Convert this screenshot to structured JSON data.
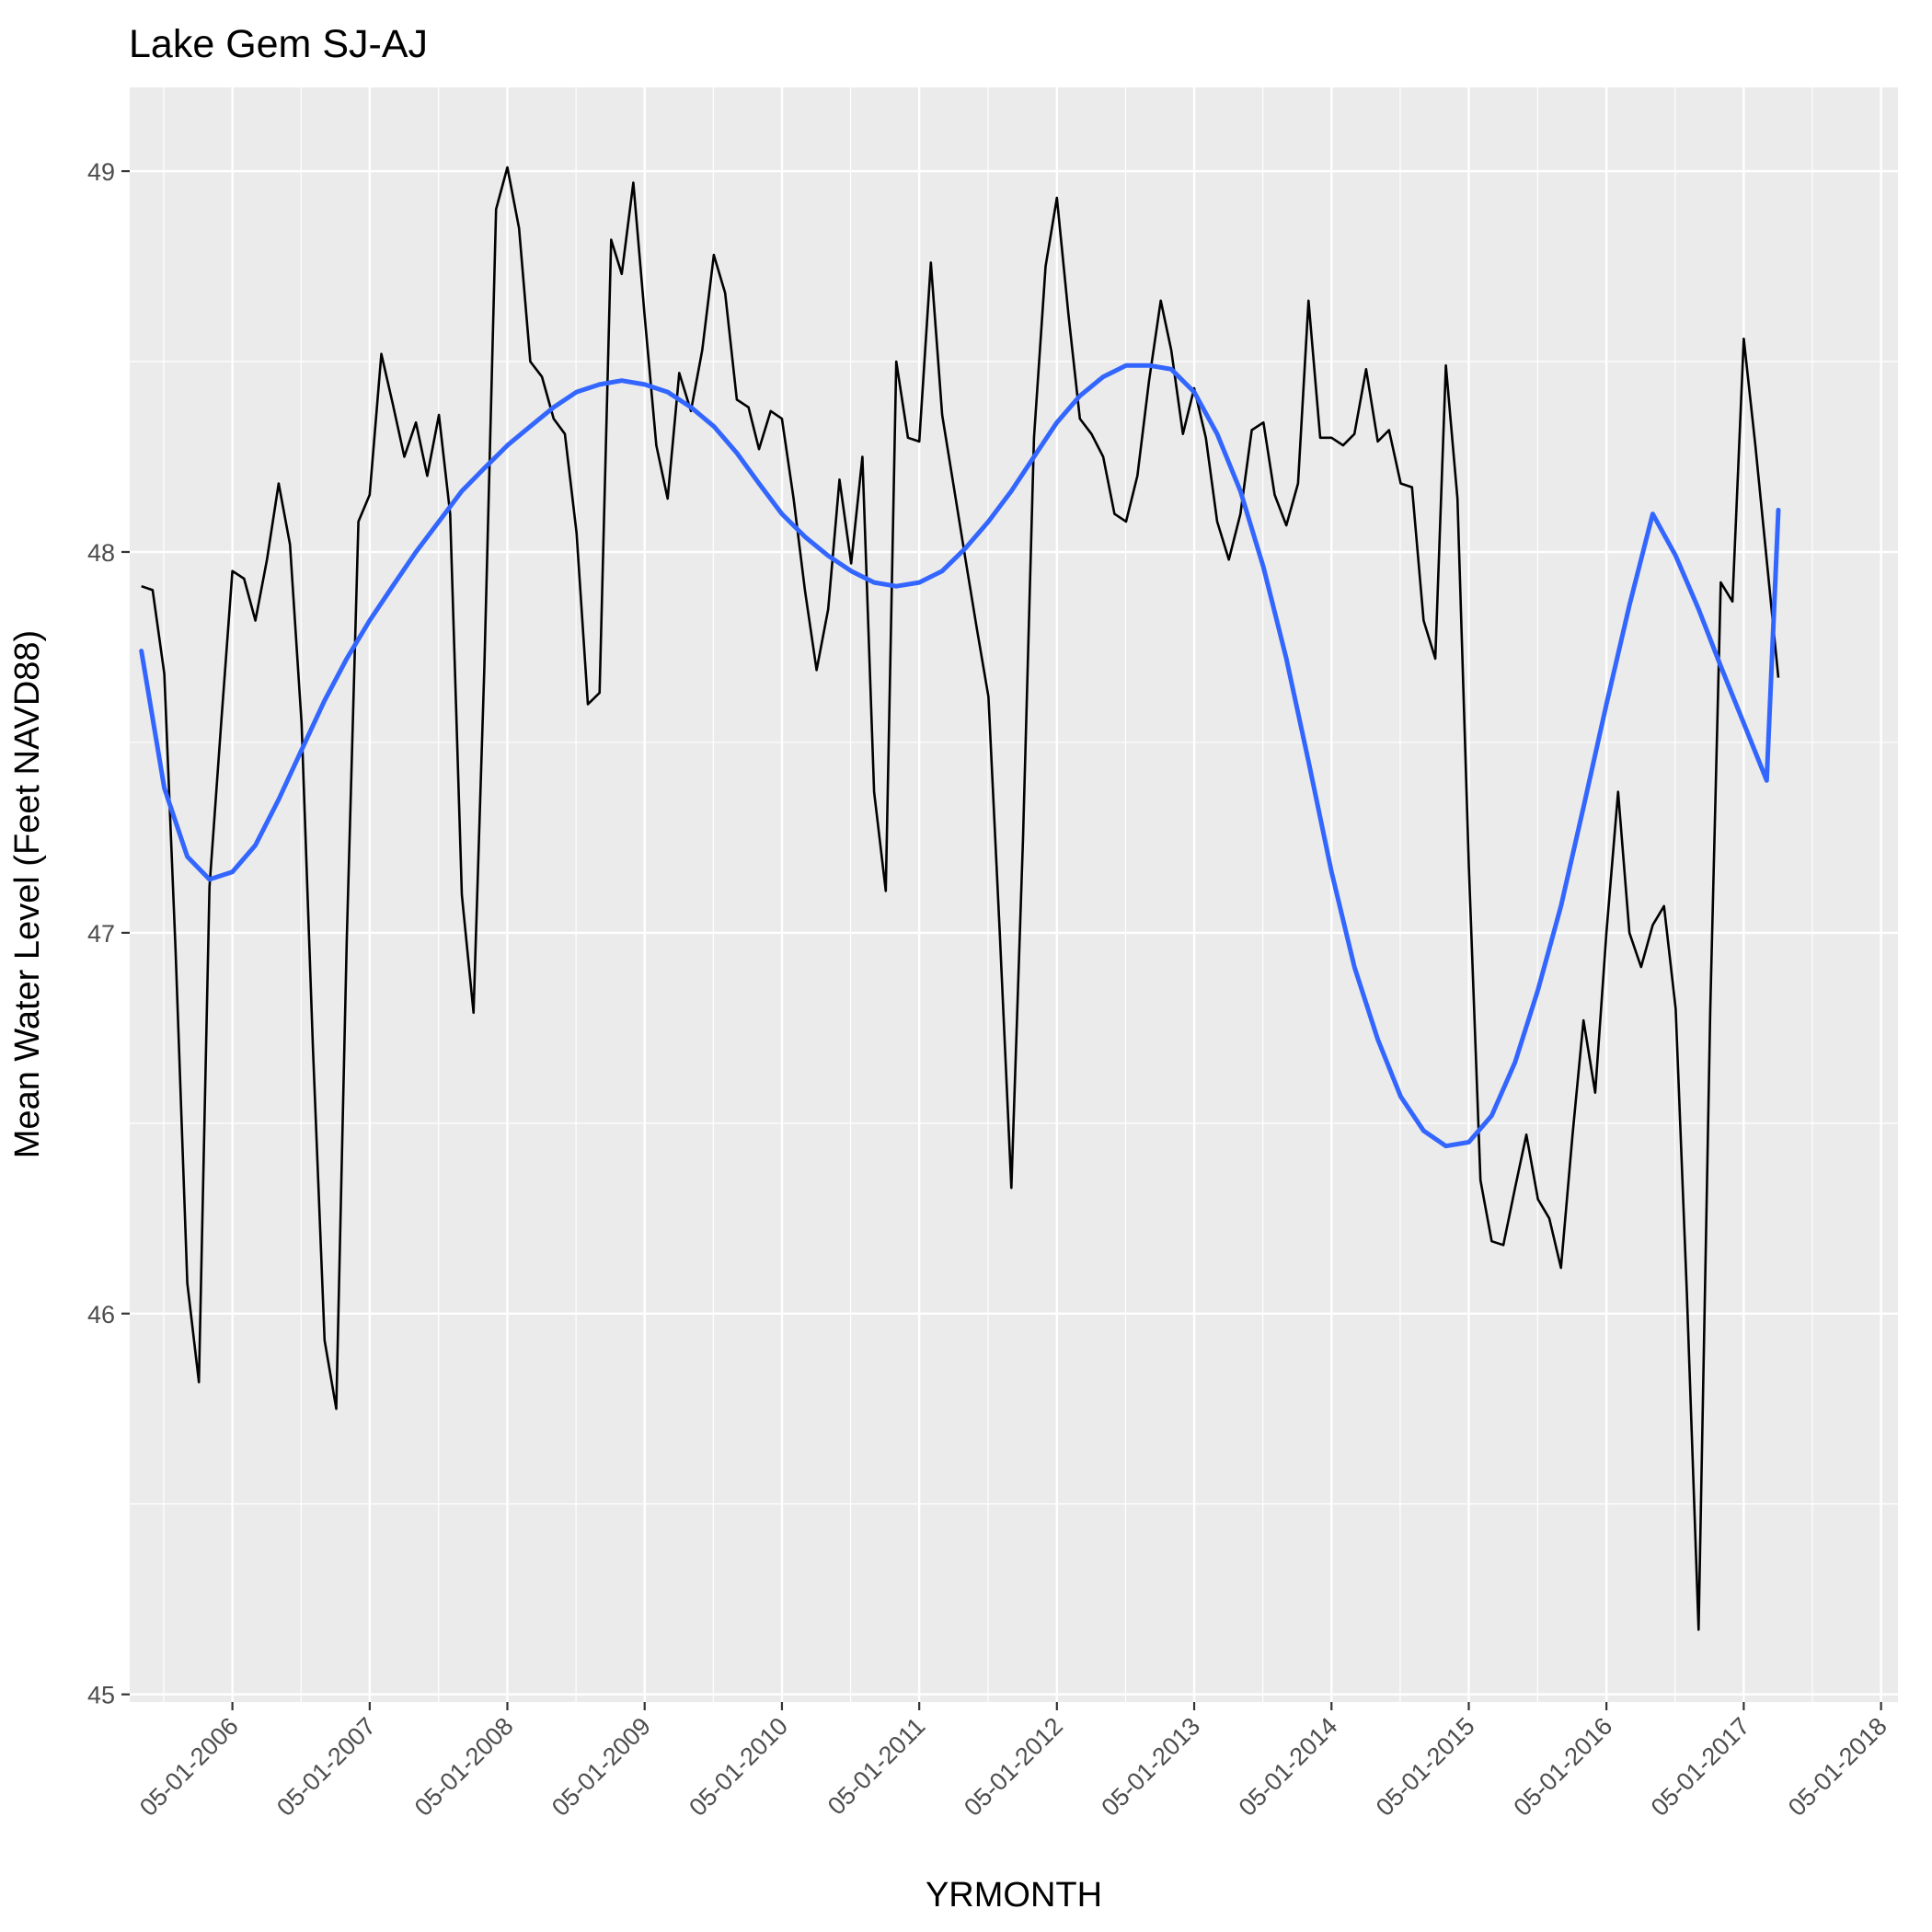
{
  "chart_data": {
    "type": "line",
    "title": "Lake Gem SJ-AJ",
    "xlabel": "YRMONTH",
    "ylabel": "Mean Water Level (Feet NAVD88)",
    "x_axis": {
      "kind": "date",
      "range": [
        "2005-08-01",
        "2018-06-15"
      ],
      "ticks": [
        "05-01-2006",
        "05-01-2007",
        "05-01-2008",
        "05-01-2009",
        "05-01-2010",
        "05-01-2011",
        "05-01-2012",
        "05-01-2013",
        "05-01-2014",
        "05-01-2015",
        "05-01-2016",
        "05-01-2017",
        "05-01-2018"
      ]
    },
    "y_axis": {
      "range": [
        44.98,
        49.22
      ],
      "ticks": [
        45,
        46,
        47,
        48,
        49
      ]
    },
    "grid": true,
    "legend": "none",
    "colors": {
      "panel": "#EBEBEB",
      "raw_series": "#000000",
      "smooth_series": "#3366FF"
    },
    "series": [
      {
        "kind": "raw",
        "x": [
          "2005-09-01",
          "2005-10-01",
          "2005-11-01",
          "2005-12-01",
          "2006-01-01",
          "2006-02-01",
          "2006-03-01",
          "2006-04-01",
          "2006-05-01",
          "2006-06-01",
          "2006-07-01",
          "2006-08-01",
          "2006-09-01",
          "2006-10-01",
          "2006-11-01",
          "2006-12-01",
          "2007-01-01",
          "2007-02-01",
          "2007-03-01",
          "2007-04-01",
          "2007-05-01",
          "2007-06-01",
          "2007-07-01",
          "2007-08-01",
          "2007-09-01",
          "2007-10-01",
          "2007-11-01",
          "2007-12-01",
          "2008-01-01",
          "2008-02-01",
          "2008-03-01",
          "2008-04-01",
          "2008-05-01",
          "2008-06-01",
          "2008-07-01",
          "2008-08-01",
          "2008-09-01",
          "2008-10-01",
          "2008-11-01",
          "2008-12-01",
          "2009-01-01",
          "2009-02-01",
          "2009-03-01",
          "2009-04-01",
          "2009-05-01",
          "2009-06-01",
          "2009-07-01",
          "2009-08-01",
          "2009-09-01",
          "2009-10-01",
          "2009-11-01",
          "2009-12-01",
          "2010-01-01",
          "2010-02-01",
          "2010-03-01",
          "2010-04-01",
          "2010-05-01",
          "2010-06-01",
          "2010-07-01",
          "2010-08-01",
          "2010-09-01",
          "2010-10-01",
          "2010-11-01",
          "2010-12-01",
          "2011-01-01",
          "2011-02-01",
          "2011-03-01",
          "2011-04-01",
          "2011-05-01",
          "2011-06-01",
          "2011-07-01",
          "2011-08-01",
          "2011-09-01",
          "2011-10-01",
          "2011-11-01",
          "2011-12-01",
          "2012-01-01",
          "2012-02-01",
          "2012-03-01",
          "2012-04-01",
          "2012-05-01",
          "2012-06-01",
          "2012-07-01",
          "2012-08-01",
          "2012-09-01",
          "2012-10-01",
          "2012-11-01",
          "2012-12-01",
          "2013-01-01",
          "2013-02-01",
          "2013-03-01",
          "2013-04-01",
          "2013-05-01",
          "2013-06-01",
          "2013-07-01",
          "2013-08-01",
          "2013-09-01",
          "2013-10-01",
          "2013-11-01",
          "2013-12-01",
          "2014-01-01",
          "2014-02-01",
          "2014-03-01",
          "2014-04-01",
          "2014-05-01",
          "2014-06-01",
          "2014-07-01",
          "2014-08-01",
          "2014-09-01",
          "2014-10-01",
          "2014-11-01",
          "2014-12-01",
          "2015-01-01",
          "2015-02-01",
          "2015-03-01",
          "2015-04-01",
          "2015-05-01",
          "2015-06-01",
          "2015-07-01",
          "2015-08-01",
          "2015-09-01",
          "2015-10-01",
          "2015-11-01",
          "2015-12-01",
          "2016-01-01",
          "2016-02-01",
          "2016-03-01",
          "2016-04-01",
          "2016-05-01",
          "2016-06-01",
          "2016-07-01",
          "2016-08-01",
          "2016-09-01",
          "2016-10-01",
          "2016-11-01",
          "2016-12-01",
          "2017-01-01",
          "2017-02-01",
          "2017-03-01",
          "2017-04-01",
          "2017-05-01",
          "2017-06-01",
          "2017-07-01",
          "2017-08-01"
        ],
        "values": [
          47.91,
          47.9,
          47.68,
          46.95,
          46.08,
          45.82,
          47.12,
          47.55,
          47.95,
          47.93,
          47.82,
          47.98,
          48.18,
          48.02,
          47.55,
          46.7,
          45.93,
          45.75,
          46.98,
          48.08,
          48.15,
          48.52,
          48.39,
          48.25,
          48.34,
          48.2,
          48.36,
          48.1,
          47.1,
          46.79,
          47.7,
          48.9,
          49.01,
          48.85,
          48.5,
          48.46,
          48.35,
          48.31,
          48.05,
          47.6,
          47.63,
          48.82,
          48.73,
          48.97,
          48.62,
          48.28,
          48.14,
          48.47,
          48.37,
          48.53,
          48.78,
          48.68,
          48.4,
          48.38,
          48.27,
          48.37,
          48.35,
          48.14,
          47.9,
          47.69,
          47.85,
          48.19,
          47.97,
          48.25,
          47.37,
          47.11,
          48.5,
          48.3,
          48.29,
          48.76,
          48.36,
          48.17,
          47.98,
          47.8,
          47.62,
          47.0,
          46.33,
          47.25,
          48.3,
          48.75,
          48.93,
          48.62,
          48.35,
          48.31,
          48.25,
          48.1,
          48.08,
          48.2,
          48.45,
          48.66,
          48.53,
          48.31,
          48.43,
          48.3,
          48.08,
          47.98,
          48.1,
          48.32,
          48.34,
          48.15,
          48.07,
          48.18,
          48.66,
          48.3,
          48.3,
          48.28,
          48.31,
          48.48,
          48.29,
          48.32,
          48.18,
          48.17,
          47.82,
          47.72,
          48.49,
          48.14,
          47.18,
          46.35,
          46.19,
          46.18,
          46.33,
          46.47,
          46.3,
          46.25,
          46.12,
          46.47,
          46.77,
          46.58,
          47.0,
          47.37,
          47.0,
          46.91,
          47.02,
          47.07,
          46.8,
          46.05,
          45.17,
          46.8,
          47.92,
          47.87,
          48.56,
          48.28,
          47.98,
          47.67
        ]
      },
      {
        "kind": "smooth",
        "x": [
          "2005-09-01",
          "2005-11-01",
          "2006-01-01",
          "2006-03-01",
          "2006-05-01",
          "2006-07-01",
          "2006-09-01",
          "2006-11-01",
          "2007-01-01",
          "2007-03-01",
          "2007-05-01",
          "2007-07-01",
          "2007-09-01",
          "2007-11-01",
          "2008-01-01",
          "2008-03-01",
          "2008-05-01",
          "2008-07-01",
          "2008-09-01",
          "2008-11-01",
          "2009-01-01",
          "2009-03-01",
          "2009-05-01",
          "2009-07-01",
          "2009-09-01",
          "2009-11-01",
          "2010-01-01",
          "2010-03-01",
          "2010-05-01",
          "2010-07-01",
          "2010-09-01",
          "2010-11-01",
          "2011-01-01",
          "2011-03-01",
          "2011-05-01",
          "2011-07-01",
          "2011-09-01",
          "2011-11-01",
          "2012-01-01",
          "2012-03-01",
          "2012-05-01",
          "2012-07-01",
          "2012-09-01",
          "2012-11-01",
          "2013-01-01",
          "2013-03-01",
          "2013-05-01",
          "2013-07-01",
          "2013-09-01",
          "2013-11-01",
          "2014-01-01",
          "2014-03-01",
          "2014-05-01",
          "2014-07-01",
          "2014-09-01",
          "2014-11-01",
          "2015-01-01",
          "2015-03-01",
          "2015-05-01",
          "2015-07-01",
          "2015-09-01",
          "2015-11-01",
          "2016-01-01",
          "2016-03-01",
          "2016-05-01",
          "2016-07-01",
          "2016-09-01",
          "2016-11-01",
          "2017-01-01",
          "2017-03-01",
          "2017-05-01",
          "2017-07-01",
          "2017-08-01"
        ],
        "values": [
          47.74,
          47.38,
          47.2,
          47.14,
          47.16,
          47.23,
          47.35,
          47.48,
          47.61,
          47.72,
          47.82,
          47.91,
          48.0,
          48.08,
          48.16,
          48.22,
          48.28,
          48.33,
          48.38,
          48.42,
          48.44,
          48.45,
          48.44,
          48.42,
          48.38,
          48.33,
          48.26,
          48.18,
          48.1,
          48.04,
          47.99,
          47.95,
          47.92,
          47.91,
          47.92,
          47.95,
          48.01,
          48.08,
          48.16,
          48.25,
          48.34,
          48.41,
          48.46,
          48.49,
          48.49,
          48.48,
          48.42,
          48.31,
          48.16,
          47.96,
          47.72,
          47.45,
          47.16,
          46.91,
          46.72,
          46.57,
          46.48,
          46.44,
          46.45,
          46.52,
          46.66,
          46.85,
          47.07,
          47.33,
          47.6,
          47.86,
          48.1,
          47.99,
          47.85,
          47.7,
          47.55,
          47.4,
          48.11
        ]
      }
    ]
  }
}
